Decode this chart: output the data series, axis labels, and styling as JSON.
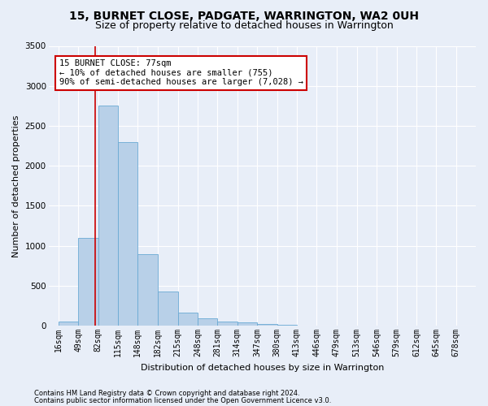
{
  "title": "15, BURNET CLOSE, PADGATE, WARRINGTON, WA2 0UH",
  "subtitle": "Size of property relative to detached houses in Warrington",
  "xlabel": "Distribution of detached houses by size in Warrington",
  "ylabel": "Number of detached properties",
  "footer_line1": "Contains HM Land Registry data © Crown copyright and database right 2024.",
  "footer_line2": "Contains public sector information licensed under the Open Government Licence v3.0.",
  "annotation_line1": "15 BURNET CLOSE: 77sqm",
  "annotation_line2": "← 10% of detached houses are smaller (755)",
  "annotation_line3": "90% of semi-detached houses are larger (7,028) →",
  "bar_facecolor": "#b8d0e8",
  "bar_edgecolor": "#6aaad4",
  "vline_color": "#cc0000",
  "ann_facecolor": "#ffffff",
  "ann_edgecolor": "#cc0000",
  "fig_bg_color": "#e8eef8",
  "plot_bg_color": "#e8eef8",
  "grid_color": "#ffffff",
  "ylim": [
    0,
    3500
  ],
  "yticks": [
    0,
    500,
    1000,
    1500,
    2000,
    2500,
    3000,
    3500
  ],
  "bin_edges": [
    16,
    49,
    82,
    115,
    148,
    182,
    215,
    248,
    281,
    314,
    347,
    380,
    413,
    446,
    479,
    513,
    546,
    579,
    612,
    645,
    678
  ],
  "bin_labels": [
    "16sqm",
    "49sqm",
    "82sqm",
    "115sqm",
    "148sqm",
    "182sqm",
    "215sqm",
    "248sqm",
    "281sqm",
    "314sqm",
    "347sqm",
    "380sqm",
    "413sqm",
    "446sqm",
    "479sqm",
    "513sqm",
    "546sqm",
    "579sqm",
    "612sqm",
    "645sqm",
    "678sqm"
  ],
  "values": [
    50,
    1100,
    2750,
    2300,
    900,
    430,
    160,
    90,
    55,
    40,
    25,
    10,
    5,
    3,
    2,
    1,
    1,
    0,
    0,
    0
  ],
  "property_size": 77,
  "title_fontsize": 10,
  "subtitle_fontsize": 9,
  "ylabel_fontsize": 8,
  "xlabel_fontsize": 8,
  "tick_fontsize": 7,
  "footer_fontsize": 6
}
